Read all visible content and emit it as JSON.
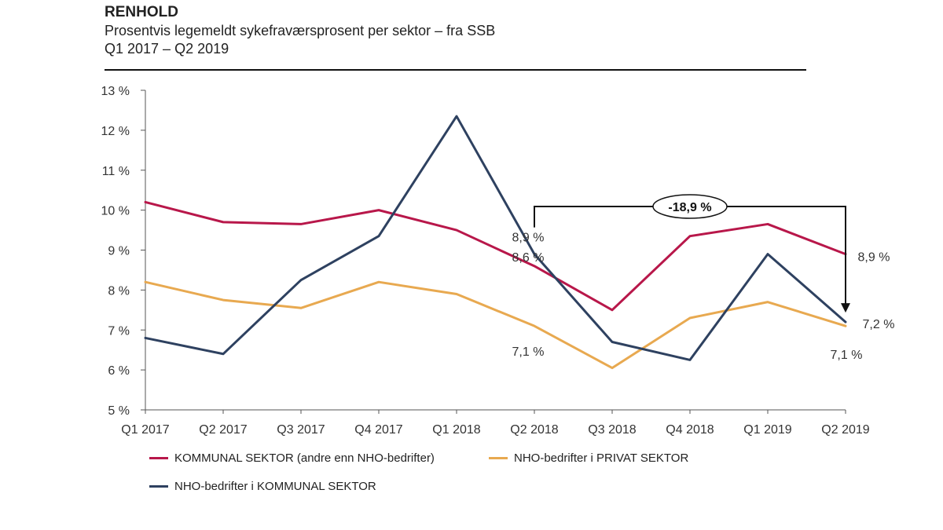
{
  "chart_data": {
    "type": "line",
    "title": "RENHOLD",
    "subtitle": "Prosentvis legemeldt sykefraværsprosent per sektor – fra SSB",
    "period": "Q1 2017 – Q2 2019",
    "categories": [
      "Q1 2017",
      "Q2 2017",
      "Q3 2017",
      "Q4 2017",
      "Q1 2018",
      "Q2 2018",
      "Q3 2018",
      "Q4 2018",
      "Q1 2019",
      "Q2 2019"
    ],
    "ylim": [
      5,
      13
    ],
    "yticks": [
      {
        "value": 5,
        "label": "5 %"
      },
      {
        "value": 6,
        "label": "6 %"
      },
      {
        "value": 7,
        "label": "7 %"
      },
      {
        "value": 8,
        "label": "8 %"
      },
      {
        "value": 9,
        "label": "9 %"
      },
      {
        "value": 10,
        "label": "10 %"
      },
      {
        "value": 11,
        "label": "11 %"
      },
      {
        "value": 12,
        "label": "12 %"
      },
      {
        "value": 13,
        "label": "13 %"
      }
    ],
    "series": [
      {
        "name": "KOMMUNAL SEKTOR (andre enn NHO-bedrifter)",
        "color": "#B8174A",
        "values": [
          10.2,
          9.7,
          9.65,
          10.0,
          9.5,
          8.6,
          7.5,
          9.35,
          9.65,
          8.9
        ]
      },
      {
        "name": "NHO-bedrifter i PRIVAT SEKTOR",
        "color": "#E8A950",
        "values": [
          8.2,
          7.75,
          7.55,
          8.2,
          7.9,
          7.1,
          6.05,
          7.3,
          7.7,
          7.1
        ]
      },
      {
        "name": "NHO-bedrifter i KOMMUNAL SEKTOR",
        "color": "#2E4160",
        "values": [
          6.8,
          6.4,
          8.25,
          9.35,
          12.35,
          8.9,
          6.7,
          6.25,
          8.9,
          7.2
        ]
      }
    ],
    "data_labels": [
      {
        "text": "8,9 %",
        "series": 2,
        "index": 5
      },
      {
        "text": "8,6 %",
        "series": 0,
        "index": 5
      },
      {
        "text": "7,1 %",
        "series": 1,
        "index": 5
      },
      {
        "text": "8,9 %",
        "series": 0,
        "index": 9
      },
      {
        "text": "7,2 %",
        "series": 2,
        "index": 9
      },
      {
        "text": "7,1 %",
        "series": 1,
        "index": 9
      }
    ],
    "annotation": {
      "text": "-18,9 %",
      "from_index": 5,
      "to_index": 9
    }
  }
}
